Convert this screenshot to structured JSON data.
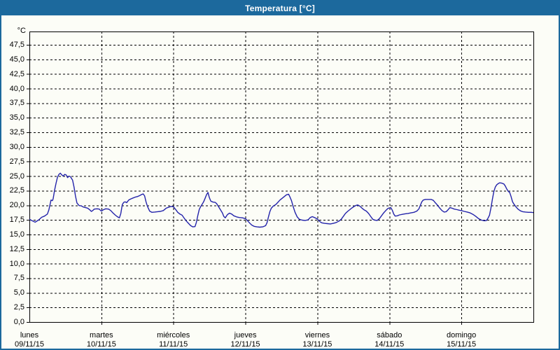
{
  "window": {
    "title": "Temperatura [°C]",
    "colors": {
      "chrome": "#1c699d",
      "background": "#fcfdf7",
      "plot_border": "#000000",
      "grid": "#000000",
      "text": "#000000",
      "series_line": "#2323aa"
    }
  },
  "chart_data": {
    "type": "line",
    "title": "Temperatura [°C]",
    "ylabel": "°C",
    "xlabel": "",
    "grid": true,
    "grid_style": "dashed",
    "legend": "none",
    "ylim": [
      0,
      47.5
    ],
    "y_axis": {
      "unit": "°C",
      "min": 0,
      "max": 47.5,
      "step": 2.5,
      "decimal_separator": ",",
      "tick_labels_bottom_up": [
        "0,0",
        "2,5",
        "5,0",
        "7,5",
        "10,0",
        "12,5",
        "15,0",
        "17,5",
        "20,0",
        "22,5",
        "25,0",
        "27,5",
        "30,0",
        "32,5",
        "35,0",
        "37,5",
        "40,0",
        "42,5",
        "45,0",
        "47,5"
      ]
    },
    "x_axis": {
      "unit": "day",
      "days": [
        {
          "name": "lunes",
          "date": "09/11/15"
        },
        {
          "name": "martes",
          "date": "10/11/15"
        },
        {
          "name": "miércoles",
          "date": "11/11/15"
        },
        {
          "name": "jueves",
          "date": "12/11/15"
        },
        {
          "name": "viernes",
          "date": "13/11/15"
        },
        {
          "name": "sábado",
          "date": "14/11/15"
        },
        {
          "name": "domingo",
          "date": "15/11/15"
        }
      ]
    },
    "series": [
      {
        "name": "Temperatura",
        "color": "#2323aa",
        "points": [
          [
            0.0,
            17.6
          ],
          [
            0.04,
            17.35
          ],
          [
            0.08,
            17.1
          ],
          [
            0.13,
            17.5
          ],
          [
            0.17,
            17.95
          ],
          [
            0.21,
            18.15
          ],
          [
            0.25,
            18.5
          ],
          [
            0.27,
            19.2
          ],
          [
            0.29,
            20.3
          ],
          [
            0.3,
            20.9
          ],
          [
            0.32,
            20.8
          ],
          [
            0.33,
            21.1
          ],
          [
            0.35,
            22.6
          ],
          [
            0.37,
            23.8
          ],
          [
            0.39,
            24.8
          ],
          [
            0.41,
            25.3
          ],
          [
            0.43,
            25.5
          ],
          [
            0.45,
            25.2
          ],
          [
            0.47,
            25.0
          ],
          [
            0.49,
            25.3
          ],
          [
            0.51,
            25.2
          ],
          [
            0.53,
            24.75
          ],
          [
            0.55,
            25.0
          ],
          [
            0.57,
            24.9
          ],
          [
            0.6,
            24.3
          ],
          [
            0.62,
            23.1
          ],
          [
            0.64,
            21.6
          ],
          [
            0.66,
            20.4
          ],
          [
            0.69,
            19.95
          ],
          [
            0.72,
            19.9
          ],
          [
            0.75,
            19.7
          ],
          [
            0.78,
            19.6
          ],
          [
            0.81,
            19.5
          ],
          [
            0.84,
            19.2
          ],
          [
            0.86,
            18.95
          ],
          [
            0.88,
            19.1
          ],
          [
            0.9,
            19.35
          ],
          [
            0.94,
            19.4
          ],
          [
            0.97,
            19.35
          ],
          [
            1.0,
            19.0
          ],
          [
            1.03,
            19.25
          ],
          [
            1.06,
            19.4
          ],
          [
            1.1,
            19.35
          ],
          [
            1.13,
            19.1
          ],
          [
            1.16,
            18.7
          ],
          [
            1.19,
            18.35
          ],
          [
            1.22,
            18.05
          ],
          [
            1.25,
            17.85
          ],
          [
            1.27,
            18.6
          ],
          [
            1.29,
            20.1
          ],
          [
            1.31,
            20.5
          ],
          [
            1.33,
            20.6
          ],
          [
            1.35,
            20.45
          ],
          [
            1.38,
            20.9
          ],
          [
            1.41,
            21.1
          ],
          [
            1.44,
            21.25
          ],
          [
            1.47,
            21.4
          ],
          [
            1.5,
            21.5
          ],
          [
            1.53,
            21.65
          ],
          [
            1.56,
            21.85
          ],
          [
            1.58,
            21.95
          ],
          [
            1.6,
            21.6
          ],
          [
            1.62,
            20.6
          ],
          [
            1.64,
            19.8
          ],
          [
            1.67,
            19.0
          ],
          [
            1.7,
            18.8
          ],
          [
            1.74,
            18.85
          ],
          [
            1.78,
            18.9
          ],
          [
            1.82,
            18.95
          ],
          [
            1.86,
            19.1
          ],
          [
            1.9,
            19.5
          ],
          [
            1.94,
            19.7
          ],
          [
            1.97,
            19.8
          ],
          [
            2.0,
            19.75
          ],
          [
            2.03,
            19.3
          ],
          [
            2.06,
            18.8
          ],
          [
            2.09,
            18.5
          ],
          [
            2.12,
            18.3
          ],
          [
            2.15,
            17.8
          ],
          [
            2.18,
            17.3
          ],
          [
            2.21,
            16.9
          ],
          [
            2.24,
            16.5
          ],
          [
            2.27,
            16.3
          ],
          [
            2.3,
            16.35
          ],
          [
            2.32,
            17.1
          ],
          [
            2.34,
            18.3
          ],
          [
            2.36,
            19.3
          ],
          [
            2.38,
            19.8
          ],
          [
            2.4,
            20.2
          ],
          [
            2.42,
            20.6
          ],
          [
            2.44,
            21.2
          ],
          [
            2.46,
            21.8
          ],
          [
            2.48,
            22.2
          ],
          [
            2.5,
            21.3
          ],
          [
            2.52,
            20.7
          ],
          [
            2.55,
            20.55
          ],
          [
            2.58,
            20.5
          ],
          [
            2.6,
            20.3
          ],
          [
            2.62,
            19.9
          ],
          [
            2.65,
            19.3
          ],
          [
            2.68,
            18.7
          ],
          [
            2.7,
            18.1
          ],
          [
            2.72,
            17.85
          ],
          [
            2.75,
            18.4
          ],
          [
            2.78,
            18.65
          ],
          [
            2.81,
            18.5
          ],
          [
            2.84,
            18.2
          ],
          [
            2.88,
            18.0
          ],
          [
            2.92,
            17.9
          ],
          [
            2.96,
            17.85
          ],
          [
            3.0,
            17.7
          ],
          [
            3.03,
            17.35
          ],
          [
            3.06,
            16.95
          ],
          [
            3.09,
            16.6
          ],
          [
            3.12,
            16.4
          ],
          [
            3.16,
            16.3
          ],
          [
            3.2,
            16.25
          ],
          [
            3.24,
            16.3
          ],
          [
            3.28,
            16.5
          ],
          [
            3.3,
            17.0
          ],
          [
            3.32,
            18.0
          ],
          [
            3.34,
            18.9
          ],
          [
            3.36,
            19.5
          ],
          [
            3.39,
            19.9
          ],
          [
            3.42,
            20.1
          ],
          [
            3.45,
            20.5
          ],
          [
            3.48,
            20.9
          ],
          [
            3.51,
            21.2
          ],
          [
            3.54,
            21.5
          ],
          [
            3.57,
            21.8
          ],
          [
            3.6,
            21.9
          ],
          [
            3.62,
            21.4
          ],
          [
            3.64,
            20.8
          ],
          [
            3.66,
            19.9
          ],
          [
            3.69,
            18.8
          ],
          [
            3.72,
            18.0
          ],
          [
            3.75,
            17.6
          ],
          [
            3.79,
            17.45
          ],
          [
            3.83,
            17.4
          ],
          [
            3.87,
            17.5
          ],
          [
            3.9,
            17.9
          ],
          [
            3.93,
            18.05
          ],
          [
            3.96,
            17.9
          ],
          [
            4.0,
            17.65
          ],
          [
            4.03,
            17.25
          ],
          [
            4.06,
            17.0
          ],
          [
            4.1,
            16.9
          ],
          [
            4.14,
            16.85
          ],
          [
            4.18,
            16.8
          ],
          [
            4.22,
            16.9
          ],
          [
            4.26,
            17.05
          ],
          [
            4.3,
            17.3
          ],
          [
            4.33,
            17.6
          ],
          [
            4.36,
            18.1
          ],
          [
            4.39,
            18.6
          ],
          [
            4.42,
            18.95
          ],
          [
            4.45,
            19.25
          ],
          [
            4.48,
            19.55
          ],
          [
            4.51,
            19.8
          ],
          [
            4.54,
            20.0
          ],
          [
            4.56,
            20.05
          ],
          [
            4.59,
            19.85
          ],
          [
            4.62,
            19.5
          ],
          [
            4.65,
            19.2
          ],
          [
            4.68,
            19.0
          ],
          [
            4.71,
            18.6
          ],
          [
            4.74,
            18.1
          ],
          [
            4.77,
            17.6
          ],
          [
            4.8,
            17.45
          ],
          [
            4.83,
            17.4
          ],
          [
            4.86,
            17.7
          ],
          [
            4.89,
            18.2
          ],
          [
            4.92,
            18.7
          ],
          [
            4.95,
            19.1
          ],
          [
            4.98,
            19.45
          ],
          [
            5.0,
            19.55
          ],
          [
            5.02,
            19.6
          ],
          [
            5.04,
            19.15
          ],
          [
            5.06,
            18.5
          ],
          [
            5.08,
            18.15
          ],
          [
            5.11,
            18.2
          ],
          [
            5.14,
            18.35
          ],
          [
            5.18,
            18.45
          ],
          [
            5.22,
            18.55
          ],
          [
            5.26,
            18.6
          ],
          [
            5.3,
            18.7
          ],
          [
            5.34,
            18.8
          ],
          [
            5.38,
            19.0
          ],
          [
            5.41,
            19.4
          ],
          [
            5.43,
            20.0
          ],
          [
            5.45,
            20.6
          ],
          [
            5.47,
            20.9
          ],
          [
            5.5,
            21.0
          ],
          [
            5.54,
            21.0
          ],
          [
            5.58,
            21.0
          ],
          [
            5.61,
            20.85
          ],
          [
            5.64,
            20.4
          ],
          [
            5.67,
            20.0
          ],
          [
            5.7,
            19.5
          ],
          [
            5.73,
            19.1
          ],
          [
            5.76,
            18.85
          ],
          [
            5.79,
            18.9
          ],
          [
            5.82,
            19.3
          ],
          [
            5.84,
            19.6
          ],
          [
            5.87,
            19.5
          ],
          [
            5.9,
            19.35
          ],
          [
            5.94,
            19.25
          ],
          [
            5.97,
            19.15
          ],
          [
            6.0,
            19.1
          ],
          [
            6.04,
            18.95
          ],
          [
            6.08,
            18.85
          ],
          [
            6.12,
            18.7
          ],
          [
            6.16,
            18.45
          ],
          [
            6.2,
            18.1
          ],
          [
            6.24,
            17.7
          ],
          [
            6.28,
            17.45
          ],
          [
            6.32,
            17.35
          ],
          [
            6.35,
            17.4
          ],
          [
            6.37,
            17.8
          ],
          [
            6.39,
            18.3
          ],
          [
            6.41,
            19.5
          ],
          [
            6.43,
            21.0
          ],
          [
            6.45,
            22.3
          ],
          [
            6.47,
            23.1
          ],
          [
            6.49,
            23.5
          ],
          [
            6.51,
            23.7
          ],
          [
            6.53,
            23.85
          ],
          [
            6.56,
            23.8
          ],
          [
            6.59,
            23.65
          ],
          [
            6.61,
            23.3
          ],
          [
            6.63,
            22.8
          ],
          [
            6.65,
            22.4
          ],
          [
            6.67,
            22.2
          ],
          [
            6.69,
            21.5
          ],
          [
            6.71,
            20.6
          ],
          [
            6.73,
            20.2
          ],
          [
            6.76,
            19.7
          ],
          [
            6.79,
            19.3
          ],
          [
            6.82,
            19.05
          ],
          [
            6.85,
            18.9
          ],
          [
            6.89,
            18.85
          ],
          [
            6.93,
            18.8
          ],
          [
            6.97,
            18.8
          ],
          [
            7.0,
            18.75
          ]
        ]
      }
    ]
  }
}
